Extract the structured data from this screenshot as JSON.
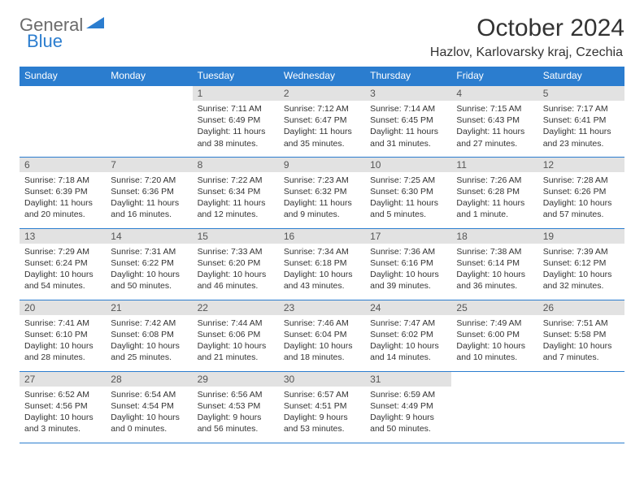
{
  "logo": {
    "part1": "General",
    "part2": "Blue"
  },
  "title": "October 2024",
  "location": "Hazlov, Karlovarsky kraj, Czechia",
  "colors": {
    "header_bg": "#2b7dcf",
    "header_text": "#ffffff",
    "daynum_bg": "#e2e2e2",
    "border": "#2b7dcf",
    "body_text": "#333333",
    "logo_gray": "#6b6b6b",
    "logo_blue": "#2b7dcf",
    "page_bg": "#ffffff"
  },
  "typography": {
    "title_fontsize": 30,
    "location_fontsize": 16,
    "weekday_fontsize": 12,
    "daynum_fontsize": 12,
    "body_fontsize": 10.5
  },
  "layout": {
    "columns": 7,
    "rows": 5,
    "first_day_column": 2
  },
  "weekdays": [
    "Sunday",
    "Monday",
    "Tuesday",
    "Wednesday",
    "Thursday",
    "Friday",
    "Saturday"
  ],
  "days": [
    {
      "n": 1,
      "sunrise": "7:11 AM",
      "sunset": "6:49 PM",
      "daylight": "11 hours and 38 minutes."
    },
    {
      "n": 2,
      "sunrise": "7:12 AM",
      "sunset": "6:47 PM",
      "daylight": "11 hours and 35 minutes."
    },
    {
      "n": 3,
      "sunrise": "7:14 AM",
      "sunset": "6:45 PM",
      "daylight": "11 hours and 31 minutes."
    },
    {
      "n": 4,
      "sunrise": "7:15 AM",
      "sunset": "6:43 PM",
      "daylight": "11 hours and 27 minutes."
    },
    {
      "n": 5,
      "sunrise": "7:17 AM",
      "sunset": "6:41 PM",
      "daylight": "11 hours and 23 minutes."
    },
    {
      "n": 6,
      "sunrise": "7:18 AM",
      "sunset": "6:39 PM",
      "daylight": "11 hours and 20 minutes."
    },
    {
      "n": 7,
      "sunrise": "7:20 AM",
      "sunset": "6:36 PM",
      "daylight": "11 hours and 16 minutes."
    },
    {
      "n": 8,
      "sunrise": "7:22 AM",
      "sunset": "6:34 PM",
      "daylight": "11 hours and 12 minutes."
    },
    {
      "n": 9,
      "sunrise": "7:23 AM",
      "sunset": "6:32 PM",
      "daylight": "11 hours and 9 minutes."
    },
    {
      "n": 10,
      "sunrise": "7:25 AM",
      "sunset": "6:30 PM",
      "daylight": "11 hours and 5 minutes."
    },
    {
      "n": 11,
      "sunrise": "7:26 AM",
      "sunset": "6:28 PM",
      "daylight": "11 hours and 1 minute."
    },
    {
      "n": 12,
      "sunrise": "7:28 AM",
      "sunset": "6:26 PM",
      "daylight": "10 hours and 57 minutes."
    },
    {
      "n": 13,
      "sunrise": "7:29 AM",
      "sunset": "6:24 PM",
      "daylight": "10 hours and 54 minutes."
    },
    {
      "n": 14,
      "sunrise": "7:31 AM",
      "sunset": "6:22 PM",
      "daylight": "10 hours and 50 minutes."
    },
    {
      "n": 15,
      "sunrise": "7:33 AM",
      "sunset": "6:20 PM",
      "daylight": "10 hours and 46 minutes."
    },
    {
      "n": 16,
      "sunrise": "7:34 AM",
      "sunset": "6:18 PM",
      "daylight": "10 hours and 43 minutes."
    },
    {
      "n": 17,
      "sunrise": "7:36 AM",
      "sunset": "6:16 PM",
      "daylight": "10 hours and 39 minutes."
    },
    {
      "n": 18,
      "sunrise": "7:38 AM",
      "sunset": "6:14 PM",
      "daylight": "10 hours and 36 minutes."
    },
    {
      "n": 19,
      "sunrise": "7:39 AM",
      "sunset": "6:12 PM",
      "daylight": "10 hours and 32 minutes."
    },
    {
      "n": 20,
      "sunrise": "7:41 AM",
      "sunset": "6:10 PM",
      "daylight": "10 hours and 28 minutes."
    },
    {
      "n": 21,
      "sunrise": "7:42 AM",
      "sunset": "6:08 PM",
      "daylight": "10 hours and 25 minutes."
    },
    {
      "n": 22,
      "sunrise": "7:44 AM",
      "sunset": "6:06 PM",
      "daylight": "10 hours and 21 minutes."
    },
    {
      "n": 23,
      "sunrise": "7:46 AM",
      "sunset": "6:04 PM",
      "daylight": "10 hours and 18 minutes."
    },
    {
      "n": 24,
      "sunrise": "7:47 AM",
      "sunset": "6:02 PM",
      "daylight": "10 hours and 14 minutes."
    },
    {
      "n": 25,
      "sunrise": "7:49 AM",
      "sunset": "6:00 PM",
      "daylight": "10 hours and 10 minutes."
    },
    {
      "n": 26,
      "sunrise": "7:51 AM",
      "sunset": "5:58 PM",
      "daylight": "10 hours and 7 minutes."
    },
    {
      "n": 27,
      "sunrise": "6:52 AM",
      "sunset": "4:56 PM",
      "daylight": "10 hours and 3 minutes."
    },
    {
      "n": 28,
      "sunrise": "6:54 AM",
      "sunset": "4:54 PM",
      "daylight": "10 hours and 0 minutes."
    },
    {
      "n": 29,
      "sunrise": "6:56 AM",
      "sunset": "4:53 PM",
      "daylight": "9 hours and 56 minutes."
    },
    {
      "n": 30,
      "sunrise": "6:57 AM",
      "sunset": "4:51 PM",
      "daylight": "9 hours and 53 minutes."
    },
    {
      "n": 31,
      "sunrise": "6:59 AM",
      "sunset": "4:49 PM",
      "daylight": "9 hours and 50 minutes."
    }
  ],
  "labels": {
    "sunrise": "Sunrise:",
    "sunset": "Sunset:",
    "daylight": "Daylight:"
  }
}
